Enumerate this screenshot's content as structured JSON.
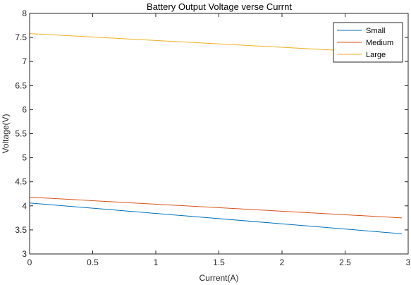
{
  "chart_data": {
    "type": "line",
    "title": "Battery Output Voltage verse Currnt",
    "xlabel": "Current(A)",
    "ylabel": "Voltage(V)",
    "xlim": [
      0,
      3
    ],
    "ylim": [
      3,
      8
    ],
    "xticks": [
      0,
      0.5,
      1,
      1.5,
      2,
      2.5,
      3
    ],
    "xtick_labels": [
      "0",
      "0.5",
      "1",
      "1.5",
      "2",
      "2.5",
      "3"
    ],
    "yticks": [
      3,
      3.5,
      4,
      4.5,
      5,
      5.5,
      6,
      6.5,
      7,
      7.5,
      8
    ],
    "ytick_labels": [
      "3",
      "3.5",
      "4",
      "4.5",
      "5",
      "5.5",
      "6",
      "6.5",
      "7",
      "7.5",
      "8"
    ],
    "grid": false,
    "legend_position": "top-right",
    "series": [
      {
        "name": "Small",
        "color": "#0072BD",
        "x": [
          0,
          2.95
        ],
        "y": [
          4.06,
          3.42
        ]
      },
      {
        "name": "Medium",
        "color": "#D95319",
        "x": [
          0,
          2.95
        ],
        "y": [
          4.18,
          3.75
        ]
      },
      {
        "name": "Large",
        "color": "#EDB120",
        "x": [
          0,
          2.95
        ],
        "y": [
          7.58,
          7.16
        ]
      }
    ]
  }
}
